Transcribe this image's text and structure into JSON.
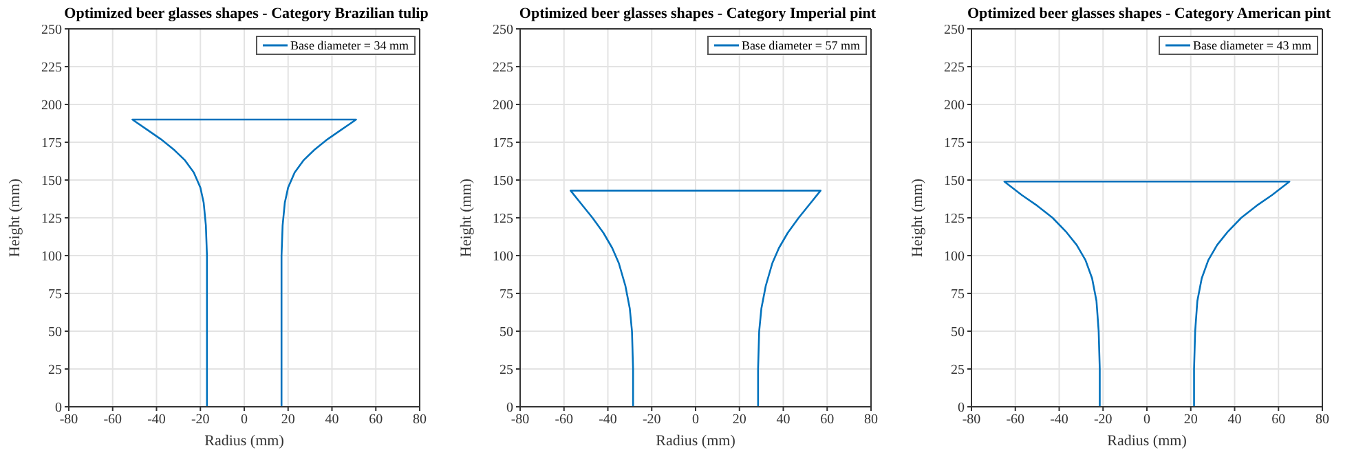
{
  "chart_data": [
    {
      "type": "line",
      "title": "Optimized beer glasses shapes - Category Brazilian tulip",
      "xlabel": "Radius (mm)",
      "ylabel": "Height (mm)",
      "xlim": [
        -80,
        80
      ],
      "xticks": [
        -80,
        -60,
        -40,
        -20,
        0,
        20,
        40,
        60,
        80
      ],
      "ylim": [
        0,
        250
      ],
      "yticks": [
        0,
        25,
        50,
        75,
        100,
        125,
        150,
        175,
        200,
        225,
        250
      ],
      "grid": true,
      "legend": "top right",
      "marker": "none",
      "line_style": "solid",
      "series": [
        {
          "name": "Base diameter =  34 mm",
          "color": "#0072bd",
          "x": [
            -17,
            -17,
            -17,
            -17.5,
            -18.5,
            -20,
            -23,
            -27,
            -32,
            -38,
            -44,
            -51,
            51,
            44,
            38,
            32,
            27,
            23,
            20,
            18.5,
            17.5,
            17,
            17,
            17
          ],
          "values": [
            0,
            50,
            100,
            120,
            135,
            145,
            155,
            163,
            170,
            177,
            183,
            190,
            190,
            183,
            177,
            170,
            163,
            155,
            145,
            135,
            120,
            100,
            50,
            0
          ]
        }
      ]
    },
    {
      "type": "line",
      "title": "Optimized beer glasses shapes - Category Imperial pint",
      "xlabel": "Radius (mm)",
      "ylabel": "Height (mm)",
      "xlim": [
        -80,
        80
      ],
      "xticks": [
        -80,
        -60,
        -40,
        -20,
        0,
        20,
        40,
        60,
        80
      ],
      "ylim": [
        0,
        250
      ],
      "yticks": [
        0,
        25,
        50,
        75,
        100,
        125,
        150,
        175,
        200,
        225,
        250
      ],
      "grid": true,
      "legend": "top right",
      "marker": "none",
      "line_style": "solid",
      "series": [
        {
          "name": "Base diameter =  57 mm",
          "color": "#0072bd",
          "x": [
            -28.5,
            -28.5,
            -29,
            -30,
            -32,
            -35,
            -38,
            -42,
            -47,
            -52,
            -57,
            57,
            52,
            47,
            42,
            38,
            35,
            32,
            30,
            29,
            28.5,
            28.5
          ],
          "values": [
            0,
            25,
            50,
            65,
            80,
            95,
            105,
            115,
            125,
            134,
            143,
            143,
            134,
            125,
            115,
            105,
            95,
            80,
            65,
            50,
            25,
            0
          ]
        }
      ]
    },
    {
      "type": "line",
      "title": "Optimized beer glasses shapes - Category American pint",
      "xlabel": "Radius (mm)",
      "ylabel": "Height (mm)",
      "xlim": [
        -80,
        80
      ],
      "xticks": [
        -80,
        -60,
        -40,
        -20,
        0,
        20,
        40,
        60,
        80
      ],
      "ylim": [
        0,
        250
      ],
      "yticks": [
        0,
        25,
        50,
        75,
        100,
        125,
        150,
        175,
        200,
        225,
        250
      ],
      "grid": true,
      "legend": "top right",
      "marker": "none",
      "line_style": "solid",
      "series": [
        {
          "name": "Base diameter =  43 mm",
          "color": "#0072bd",
          "x": [
            -21.5,
            -21.5,
            -22,
            -23,
            -25,
            -28,
            -32,
            -37,
            -43,
            -50,
            -57,
            -65,
            65,
            57,
            50,
            43,
            37,
            32,
            28,
            25,
            23,
            22,
            21.5,
            21.5
          ],
          "values": [
            0,
            25,
            50,
            70,
            85,
            97,
            107,
            116,
            125,
            133,
            140,
            149,
            149,
            140,
            133,
            125,
            116,
            107,
            97,
            85,
            70,
            50,
            25,
            0
          ]
        }
      ]
    }
  ]
}
